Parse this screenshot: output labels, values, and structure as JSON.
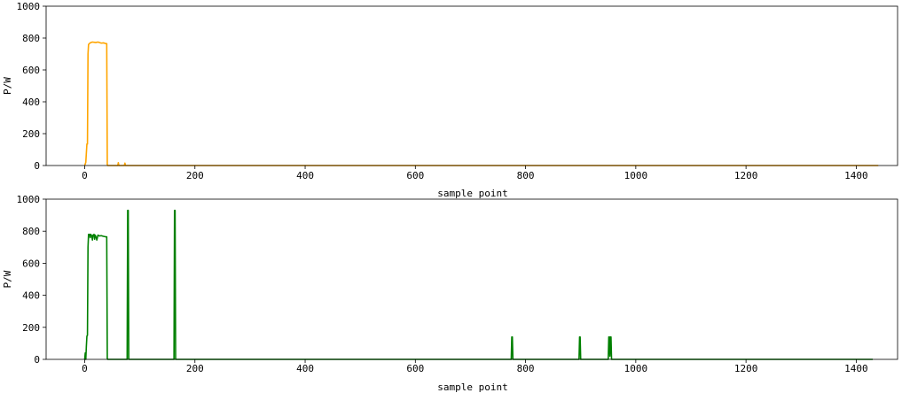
{
  "chart_data": [
    {
      "type": "line",
      "xlabel": "sample point",
      "ylabel": "P/W",
      "xlim": [
        -70,
        1475
      ],
      "ylim": [
        0,
        1000
      ],
      "xticks": [
        0,
        200,
        400,
        600,
        800,
        1000,
        1200,
        1400
      ],
      "yticks": [
        0,
        200,
        400,
        600,
        800,
        1000
      ],
      "grid": false,
      "series": [
        {
          "color": "#FFA500",
          "points": [
            [
              0,
              0
            ],
            [
              2,
              20
            ],
            [
              4,
              135
            ],
            [
              5,
              135
            ],
            [
              6,
              700
            ],
            [
              7,
              760
            ],
            [
              10,
              770
            ],
            [
              14,
              775
            ],
            [
              20,
              772
            ],
            [
              24,
              775
            ],
            [
              30,
              768
            ],
            [
              34,
              770
            ],
            [
              38,
              765
            ],
            [
              40,
              765
            ],
            [
              41,
              5
            ],
            [
              42,
              0
            ],
            [
              60,
              0
            ],
            [
              61,
              18
            ],
            [
              62,
              0
            ],
            [
              72,
              0
            ],
            [
              73,
              15
            ],
            [
              74,
              0
            ],
            [
              1440,
              0
            ]
          ]
        }
      ]
    },
    {
      "type": "line",
      "xlabel": "sample point",
      "ylabel": "P/W",
      "xlim": [
        -70,
        1475
      ],
      "ylim": [
        0,
        1000
      ],
      "xticks": [
        0,
        200,
        400,
        600,
        800,
        1000,
        1200,
        1400
      ],
      "yticks": [
        0,
        200,
        400,
        600,
        800,
        1000
      ],
      "grid": false,
      "series": [
        {
          "color": "#008000",
          "points": [
            [
              0,
              0
            ],
            [
              1,
              40
            ],
            [
              2,
              0
            ],
            [
              3,
              80
            ],
            [
              4,
              145
            ],
            [
              5,
              150
            ],
            [
              6,
              700
            ],
            [
              7,
              780
            ],
            [
              9,
              780
            ],
            [
              10,
              760
            ],
            [
              11,
              780
            ],
            [
              13,
              770
            ],
            [
              14,
              745
            ],
            [
              15,
              775
            ],
            [
              17,
              780
            ],
            [
              18,
              750
            ],
            [
              19,
              775
            ],
            [
              21,
              760
            ],
            [
              22,
              745
            ],
            [
              24,
              775
            ],
            [
              27,
              770
            ],
            [
              30,
              772
            ],
            [
              34,
              768
            ],
            [
              38,
              765
            ],
            [
              40,
              765
            ],
            [
              41,
              5
            ],
            [
              42,
              0
            ],
            [
              77,
              0
            ],
            [
              78,
              930
            ],
            [
              79,
              930
            ],
            [
              80,
              0
            ],
            [
              162,
              0
            ],
            [
              163,
              930
            ],
            [
              164,
              930
            ],
            [
              165,
              0
            ],
            [
              774,
              0
            ],
            [
              775,
              140
            ],
            [
              776,
              140
            ],
            [
              777,
              0
            ],
            [
              897,
              0
            ],
            [
              898,
              140
            ],
            [
              899,
              140
            ],
            [
              900,
              0
            ],
            [
              950,
              0
            ],
            [
              951,
              140
            ],
            [
              952,
              140
            ],
            [
              953,
              20
            ],
            [
              954,
              140
            ],
            [
              955,
              140
            ],
            [
              956,
              0
            ],
            [
              1430,
              0
            ]
          ]
        }
      ]
    }
  ]
}
